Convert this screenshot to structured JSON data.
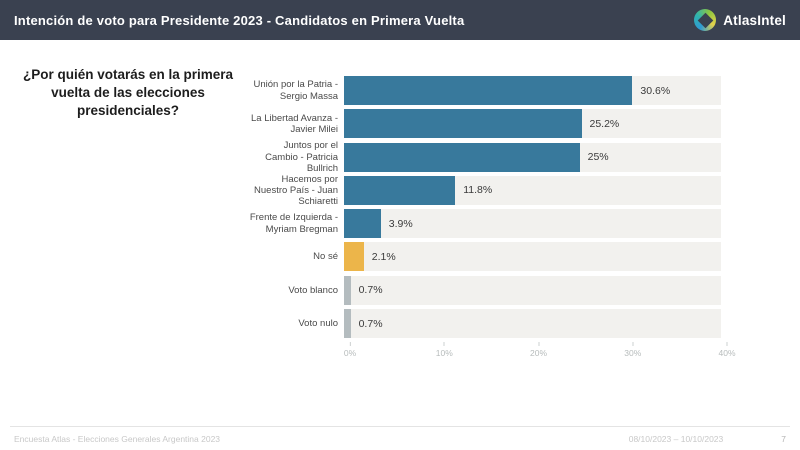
{
  "header": {
    "title": "Intención de voto para Presidente 2023 - Candidatos en Primera Vuelta",
    "logo_text": "AtlasIntel",
    "bg_color": "#3a4150"
  },
  "question": "¿Por quién votarás en la primera vuelta de las elecciones presidenciales?",
  "chart_data": {
    "type": "bar",
    "orientation": "horizontal",
    "title": "Intención de voto para Presidente 2023 - Candidatos en Primera Vuelta",
    "categories": [
      "Unión por la Patria - Sergio Massa",
      "La Libertad Avanza - Javier Milei",
      "Juntos por el Cambio - Patricia Bullrich",
      "Hacemos por Nuestro País - Juan Schiaretti",
      "Frente de Izquierda - Myriam Bregman",
      "No sé",
      "Voto blanco",
      "Voto nulo"
    ],
    "category_lines": [
      [
        "Unión por la Patria -",
        "Sergio Massa"
      ],
      [
        "La Libertad Avanza -",
        "Javier Milei"
      ],
      [
        "Juntos por el",
        "Cambio - Patricia",
        "Bullrich"
      ],
      [
        "Hacemos por",
        "Nuestro País - Juan",
        "Schiaretti"
      ],
      [
        "Frente de Izquierda -",
        "Myriam Bregman"
      ],
      [
        "No sé"
      ],
      [
        "Voto blanco"
      ],
      [
        "Voto nulo"
      ]
    ],
    "values": [
      30.6,
      25.2,
      25,
      11.8,
      3.9,
      2.1,
      0.7,
      0.7
    ],
    "value_labels": [
      "30.6%",
      "25.2%",
      "25%",
      "11.8%",
      "3.9%",
      "2.1%",
      "0.7%",
      "0.7%"
    ],
    "bar_colors": [
      "#38799c",
      "#38799c",
      "#38799c",
      "#38799c",
      "#38799c",
      "#ecb54a",
      "#b4bcbf",
      "#b4bcbf"
    ],
    "track_color": "#f2f1ee",
    "xlabel": "",
    "ylabel": "",
    "xlim": [
      0,
      40
    ],
    "x_ticks": [
      {
        "label": "0%",
        "value": 0
      },
      {
        "label": "10%",
        "value": 10
      },
      {
        "label": "20%",
        "value": 20
      },
      {
        "label": "30%",
        "value": 30
      },
      {
        "label": "40%",
        "value": 40
      }
    ],
    "grid": false,
    "legend": false
  },
  "footer": {
    "source": "Encuesta Atlas - Elecciones Generales Argentina 2023",
    "date_range": "08/10/2023 – 10/10/2023",
    "page_number": "7"
  },
  "colors": {
    "accent_teal": "#38799c",
    "accent_yellow": "#ecb54a",
    "neutral_gray": "#b4bcbf",
    "header_bg": "#3a4150"
  }
}
